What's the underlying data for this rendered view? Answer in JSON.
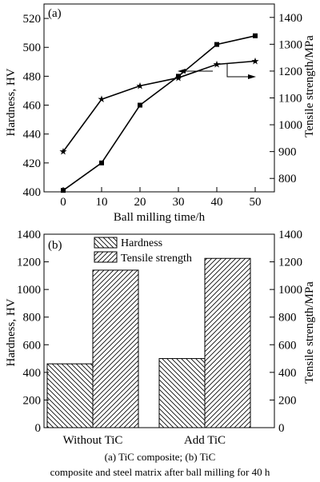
{
  "chart_data": [
    {
      "type": "line",
      "panel_label": "(a)",
      "xlabel": "Ball milling time/h",
      "ylabel_left": "Hardness, HV",
      "ylabel_right": "Tensile strength/MPa",
      "x": [
        0,
        10,
        20,
        30,
        40,
        50
      ],
      "xlim": [
        -5,
        55
      ],
      "x_ticks": [
        "0",
        "10",
        "20",
        "30",
        "40",
        "50"
      ],
      "ylim_left": [
        400,
        530
      ],
      "y_ticks_left": [
        "400",
        "420",
        "440",
        "460",
        "480",
        "500",
        "520"
      ],
      "ylim_right": [
        750,
        1450
      ],
      "y_ticks_right": [
        "800",
        "900",
        "1000",
        "1100",
        "1200",
        "1300",
        "1400"
      ],
      "series": [
        {
          "axis": "left",
          "marker": "square",
          "values": [
            401,
            420,
            460,
            480,
            502,
            508
          ]
        },
        {
          "axis": "right",
          "marker": "star",
          "values": [
            900,
            1095,
            1145,
            1175,
            1225,
            1237
          ]
        }
      ],
      "grid": false
    },
    {
      "type": "bar",
      "panel_label": "(b)",
      "categories": [
        "Without TiC",
        "Add TiC"
      ],
      "ylabel_left": "Hardness, HV",
      "ylabel_right": "Tensile strength/MPa",
      "ylim_left": [
        0,
        1400
      ],
      "y_ticks_left": [
        "0",
        "200",
        "400",
        "600",
        "800",
        "1000",
        "1200",
        "1400"
      ],
      "ylim_right": [
        0,
        1400
      ],
      "y_ticks_right": [
        "0",
        "200",
        "400",
        "600",
        "800",
        "1000",
        "1200",
        "1400"
      ],
      "series": [
        {
          "name": "Hardness",
          "pattern": "hatch-back",
          "values": [
            462,
            500
          ]
        },
        {
          "name": "Tensile strength",
          "pattern": "hatch-forward",
          "values": [
            1140,
            1225
          ]
        }
      ],
      "legend": "top-left",
      "grid": false
    }
  ],
  "caption": {
    "line1": "(a)   TiC   composite;   (b)   TiC",
    "line2": "composite and steel matrix after ball milling for 40 h"
  }
}
